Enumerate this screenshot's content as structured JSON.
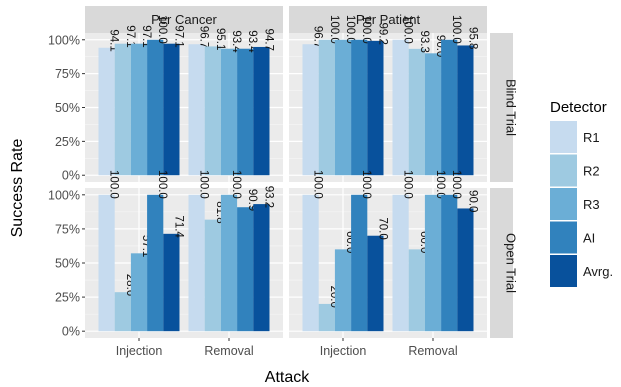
{
  "chart_data": {
    "type": "bar",
    "xlabel": "Attack",
    "ylabel": "Success Rate",
    "ylim": [
      0,
      100
    ],
    "yticks": [
      "0%",
      "25%",
      "50%",
      "75%",
      "100%"
    ],
    "columns": [
      "Per Cancer",
      "Per Patient"
    ],
    "rows": [
      "Blind Trial",
      "Open Trial"
    ],
    "categories": [
      "Injection",
      "Removal"
    ],
    "legend": {
      "title": "Detector",
      "placement": "right",
      "entries": [
        "R1",
        "R2",
        "R3",
        "AI",
        "Avrg."
      ]
    },
    "colors": [
      "#c6dbef",
      "#9ecae1",
      "#6baed6",
      "#3182bd",
      "#08519c"
    ],
    "grid": true,
    "panels": [
      {
        "column": "Per Cancer",
        "row": "Blind Trial",
        "values": {
          "Injection": [
            94.1,
            97.1,
            97.1,
            100.0,
            97.1
          ],
          "Removal": [
            96.7,
            95.1,
            93.4,
            93.4,
            94.7
          ]
        },
        "labels": {
          "Injection": [
            "94.1",
            "97.1",
            "97.1",
            "100.0",
            "97.1"
          ],
          "Removal": [
            "96.7",
            "95.1",
            "93.4",
            "93.4",
            "94.7"
          ]
        }
      },
      {
        "column": "Per Patient",
        "row": "Blind Trial",
        "values": {
          "Injection": [
            96.7,
            100.0,
            100.0,
            100.0,
            99.2
          ],
          "Removal": [
            100.0,
            93.3,
            90.0,
            100.0,
            95.8
          ]
        },
        "labels": {
          "Injection": [
            "96.7",
            "100.0",
            "100.0",
            "100.0",
            "99.2"
          ],
          "Removal": [
            "100.0",
            "93.3",
            "90.0",
            "100.0",
            "95.8"
          ]
        }
      },
      {
        "column": "Per Cancer",
        "row": "Open Trial",
        "values": {
          "Injection": [
            100.0,
            28.6,
            57.1,
            100.0,
            71.4
          ],
          "Removal": [
            100.0,
            81.8,
            100.0,
            90.9,
            93.2
          ]
        },
        "labels": {
          "Injection": [
            "100.0",
            "28.6",
            "57.1",
            "100.0",
            "71.4"
          ],
          "Removal": [
            "100.0",
            "81.8",
            "100.0",
            "90.9",
            "93.2"
          ]
        }
      },
      {
        "column": "Per Patient",
        "row": "Open Trial",
        "values": {
          "Injection": [
            100.0,
            20.0,
            60.0,
            100.0,
            70.0
          ],
          "Removal": [
            100.0,
            60.0,
            100.0,
            100.0,
            90.0
          ]
        },
        "labels": {
          "Injection": [
            "100.0",
            "20.0",
            "60.0",
            "100.0",
            "70.0"
          ],
          "Removal": [
            "100.0",
            "60.0",
            "100.0",
            "100.0",
            "90.0"
          ]
        }
      }
    ]
  }
}
